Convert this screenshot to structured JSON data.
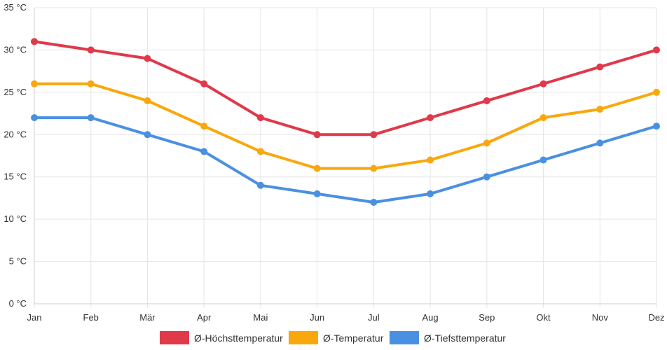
{
  "colors": {
    "high": "#e0394a",
    "avg": "#f8a80c",
    "low": "#4a90e2"
  },
  "chart_data": {
    "type": "line",
    "categories": [
      "Jan",
      "Feb",
      "Mär",
      "Apr",
      "Mai",
      "Jun",
      "Jul",
      "Aug",
      "Sep",
      "Okt",
      "Nov",
      "Dez"
    ],
    "series": [
      {
        "name": "Ø-Höchsttemperatur",
        "color_key": "high",
        "values": [
          31,
          30,
          29,
          26,
          22,
          20,
          20,
          22,
          24,
          26,
          28,
          30
        ]
      },
      {
        "name": "Ø-Temperatur",
        "color_key": "avg",
        "values": [
          26,
          26,
          24,
          21,
          18,
          16,
          16,
          17,
          19,
          22,
          23,
          25
        ]
      },
      {
        "name": "Ø-Tiefsttemperatur",
        "color_key": "low",
        "values": [
          22,
          22,
          20,
          18,
          14,
          13,
          12,
          13,
          15,
          17,
          19,
          21
        ]
      }
    ],
    "y_ticks": [
      "0 °C",
      "5 °C",
      "10 °C",
      "15 °C",
      "20 °C",
      "25 °C",
      "30 °C",
      "35 °C"
    ],
    "y_tick_values": [
      0,
      5,
      10,
      15,
      20,
      25,
      30,
      35
    ],
    "ylim": [
      0,
      35
    ],
    "grid": true,
    "legend_position": "bottom",
    "title": "",
    "xlabel": "",
    "ylabel": ""
  }
}
